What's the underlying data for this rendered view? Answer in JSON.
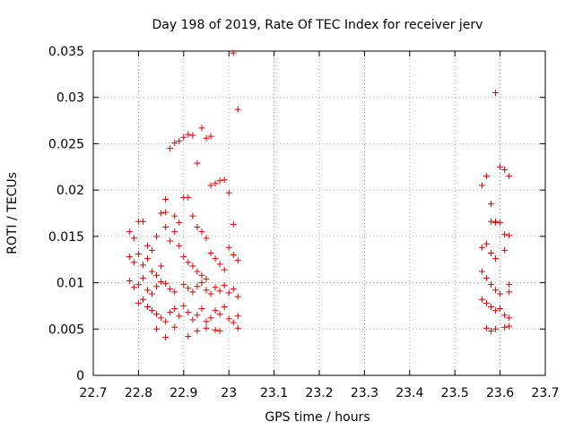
{
  "chart_data": {
    "type": "scatter",
    "title": "Day 198 of 2019, Rate Of TEC Index for receiver jerv",
    "xlabel": "GPS time / hours",
    "ylabel": "ROTI / TECUs",
    "xlim": [
      22.7,
      23.7
    ],
    "ylim": [
      0,
      0.035
    ],
    "xticks": [
      "22.7",
      "22.8",
      "22.9",
      "23",
      "23.1",
      "23.2",
      "23.3",
      "23.4",
      "23.5",
      "23.6",
      "23.7"
    ],
    "yticks": [
      "0",
      "0.005",
      "0.01",
      "0.015",
      "0.02",
      "0.025",
      "0.03",
      "0.035"
    ],
    "grid": true,
    "marker": "+",
    "color": "#e00000",
    "series": [
      {
        "name": "ROTI",
        "points": [
          [
            22.78,
            0.0155
          ],
          [
            22.79,
            0.0148
          ],
          [
            22.8,
            0.0166
          ],
          [
            22.81,
            0.0166
          ],
          [
            22.78,
            0.0128
          ],
          [
            22.79,
            0.0122
          ],
          [
            22.8,
            0.0131
          ],
          [
            22.81,
            0.0119
          ],
          [
            22.82,
            0.0126
          ],
          [
            22.83,
            0.0112
          ],
          [
            22.84,
            0.0108
          ],
          [
            22.85,
            0.0118
          ],
          [
            22.78,
            0.0102
          ],
          [
            22.79,
            0.0095
          ],
          [
            22.8,
            0.0098
          ],
          [
            22.81,
            0.0105
          ],
          [
            22.82,
            0.0092
          ],
          [
            22.83,
            0.0088
          ],
          [
            22.84,
            0.0096
          ],
          [
            22.85,
            0.0101
          ],
          [
            22.86,
            0.0099
          ],
          [
            22.87,
            0.0093
          ],
          [
            22.88,
            0.009
          ],
          [
            22.8,
            0.0078
          ],
          [
            22.81,
            0.0082
          ],
          [
            22.82,
            0.0074
          ],
          [
            22.83,
            0.007
          ],
          [
            22.84,
            0.0066
          ],
          [
            22.85,
            0.0062
          ],
          [
            22.86,
            0.0058
          ],
          [
            22.87,
            0.0068
          ],
          [
            22.88,
            0.0072
          ],
          [
            22.89,
            0.0064
          ],
          [
            22.84,
            0.005
          ],
          [
            22.86,
            0.0041
          ],
          [
            22.88,
            0.0052
          ],
          [
            22.82,
            0.014
          ],
          [
            22.83,
            0.0135
          ],
          [
            22.84,
            0.015
          ],
          [
            22.85,
            0.0175
          ],
          [
            22.86,
            0.0176
          ],
          [
            22.86,
            0.019
          ],
          [
            22.86,
            0.016
          ],
          [
            22.87,
            0.0145
          ],
          [
            22.88,
            0.0172
          ],
          [
            22.88,
            0.0155
          ],
          [
            22.89,
            0.0165
          ],
          [
            22.87,
            0.0245
          ],
          [
            22.88,
            0.0251
          ],
          [
            22.89,
            0.0253
          ],
          [
            22.9,
            0.0257
          ],
          [
            22.91,
            0.026
          ],
          [
            22.92,
            0.0259
          ],
          [
            22.93,
            0.0229
          ],
          [
            22.94,
            0.0267
          ],
          [
            22.95,
            0.0256
          ],
          [
            22.96,
            0.0258
          ],
          [
            22.9,
            0.0192
          ],
          [
            22.91,
            0.0192
          ],
          [
            22.92,
            0.0172
          ],
          [
            22.93,
            0.016
          ],
          [
            22.94,
            0.0155
          ],
          [
            22.95,
            0.0148
          ],
          [
            22.96,
            0.0205
          ],
          [
            22.97,
            0.0207
          ],
          [
            22.98,
            0.021
          ],
          [
            22.99,
            0.0211
          ],
          [
            23.0,
            0.0197
          ],
          [
            23.01,
            0.0348
          ],
          [
            23.02,
            0.0287
          ],
          [
            23.01,
            0.0163
          ],
          [
            22.89,
            0.014
          ],
          [
            22.9,
            0.0128
          ],
          [
            22.91,
            0.0122
          ],
          [
            22.92,
            0.0118
          ],
          [
            22.93,
            0.0112
          ],
          [
            22.94,
            0.0108
          ],
          [
            22.95,
            0.0104
          ],
          [
            22.96,
            0.0132
          ],
          [
            22.97,
            0.0126
          ],
          [
            22.98,
            0.012
          ],
          [
            22.99,
            0.0114
          ],
          [
            23.0,
            0.0138
          ],
          [
            23.01,
            0.013
          ],
          [
            23.02,
            0.0124
          ],
          [
            22.9,
            0.0098
          ],
          [
            22.91,
            0.0094
          ],
          [
            22.92,
            0.009
          ],
          [
            22.93,
            0.0096
          ],
          [
            22.94,
            0.01
          ],
          [
            22.95,
            0.0092
          ],
          [
            22.96,
            0.0088
          ],
          [
            22.97,
            0.0095
          ],
          [
            22.98,
            0.0091
          ],
          [
            22.99,
            0.0097
          ],
          [
            23.0,
            0.0089
          ],
          [
            23.01,
            0.0093
          ],
          [
            23.02,
            0.0085
          ],
          [
            22.9,
            0.0075
          ],
          [
            22.91,
            0.0068
          ],
          [
            22.92,
            0.006
          ],
          [
            22.93,
            0.0065
          ],
          [
            22.94,
            0.0072
          ],
          [
            22.95,
            0.0058
          ],
          [
            22.96,
            0.0062
          ],
          [
            22.97,
            0.007
          ],
          [
            22.98,
            0.0066
          ],
          [
            22.99,
            0.0074
          ],
          [
            23.0,
            0.0061
          ],
          [
            23.01,
            0.0057
          ],
          [
            23.02,
            0.0064
          ],
          [
            22.91,
            0.0042
          ],
          [
            22.93,
            0.0048
          ],
          [
            22.95,
            0.0051
          ],
          [
            22.97,
            0.0049
          ],
          [
            22.98,
            0.0048
          ],
          [
            23.02,
            0.0051
          ],
          [
            23.56,
            0.0205
          ],
          [
            23.57,
            0.0215
          ],
          [
            23.58,
            0.0166
          ],
          [
            23.59,
            0.0166
          ],
          [
            23.6,
            0.0165
          ],
          [
            23.59,
            0.0305
          ],
          [
            23.6,
            0.0225
          ],
          [
            23.61,
            0.0222
          ],
          [
            23.62,
            0.0215
          ],
          [
            23.56,
            0.0138
          ],
          [
            23.57,
            0.0142
          ],
          [
            23.58,
            0.0132
          ],
          [
            23.59,
            0.0126
          ],
          [
            23.56,
            0.0112
          ],
          [
            23.57,
            0.0105
          ],
          [
            23.58,
            0.0098
          ],
          [
            23.59,
            0.0092
          ],
          [
            23.6,
            0.0088
          ],
          [
            23.61,
            0.0152
          ],
          [
            23.62,
            0.0151
          ],
          [
            23.61,
            0.0135
          ],
          [
            23.56,
            0.0082
          ],
          [
            23.57,
            0.0078
          ],
          [
            23.58,
            0.0074
          ],
          [
            23.59,
            0.007
          ],
          [
            23.6,
            0.0072
          ],
          [
            23.61,
            0.0065
          ],
          [
            23.62,
            0.0062
          ],
          [
            23.62,
            0.0098
          ],
          [
            23.62,
            0.009
          ],
          [
            23.57,
            0.0051
          ],
          [
            23.58,
            0.0048
          ],
          [
            23.59,
            0.005
          ],
          [
            23.61,
            0.0052
          ],
          [
            23.62,
            0.0053
          ],
          [
            23.58,
            0.0185
          ],
          [
            23.59,
            0.0165
          ]
        ]
      }
    ]
  }
}
